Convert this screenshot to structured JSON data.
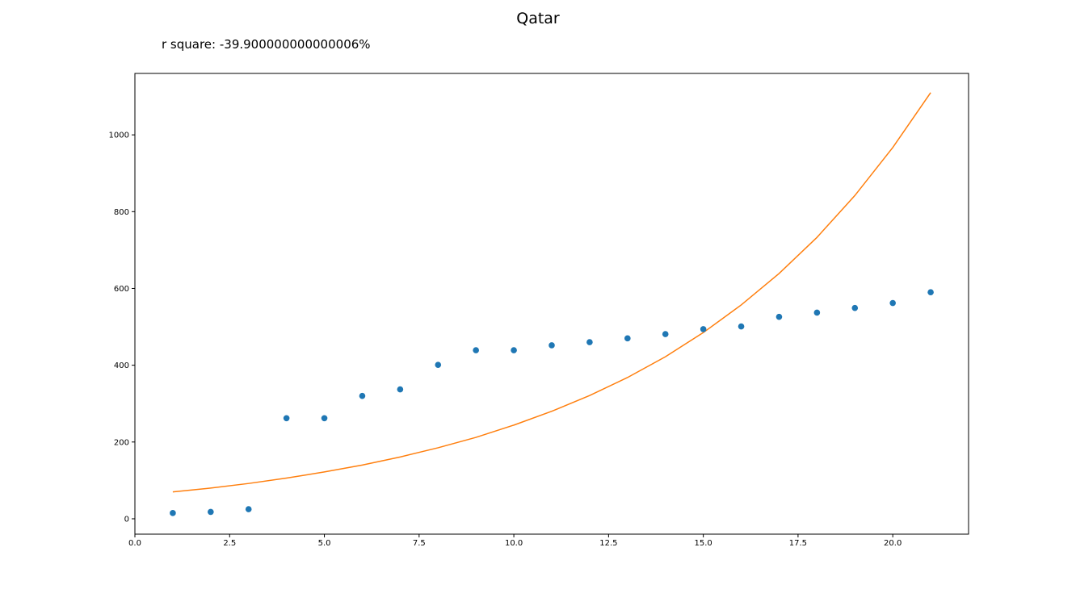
{
  "chart_data": {
    "type": "scatter",
    "title": "Qatar",
    "subtitle": "r square: -39.900000000000006%",
    "xlabel": "",
    "ylabel": "",
    "xlim": [
      0,
      22
    ],
    "ylim": [
      -40,
      1160
    ],
    "xticks": [
      0.0,
      2.5,
      5.0,
      7.5,
      10.0,
      12.5,
      15.0,
      17.5,
      20.0
    ],
    "xtick_labels": [
      "0.0",
      "2.5",
      "5.0",
      "7.5",
      "10.0",
      "12.5",
      "15.0",
      "17.5",
      "20.0"
    ],
    "yticks": [
      0,
      200,
      400,
      600,
      800,
      1000
    ],
    "ytick_labels": [
      "0",
      "200",
      "400",
      "600",
      "800",
      "1000"
    ],
    "grid": false,
    "series": [
      {
        "kind": "scatter",
        "color": "#1f77b4",
        "x": [
          1,
          2,
          3,
          4,
          5,
          6,
          7,
          8,
          9,
          10,
          11,
          12,
          13,
          14,
          15,
          16,
          17,
          18,
          19,
          20,
          21
        ],
        "y": [
          15,
          18,
          25,
          262,
          262,
          320,
          337,
          401,
          439,
          439,
          452,
          460,
          470,
          481,
          494,
          501,
          526,
          537,
          549,
          562,
          590
        ]
      },
      {
        "kind": "line",
        "color": "#ff7f0e",
        "x": [
          1,
          2,
          3,
          4,
          5,
          6,
          7,
          8,
          9,
          10,
          11,
          12,
          13,
          14,
          15,
          16,
          17,
          18,
          19,
          20,
          21
        ],
        "y": [
          70,
          80,
          92,
          106,
          122,
          140,
          161,
          185,
          212,
          244,
          280,
          321,
          368,
          422,
          485,
          557,
          639,
          733,
          842,
          967,
          1110
        ]
      }
    ]
  }
}
